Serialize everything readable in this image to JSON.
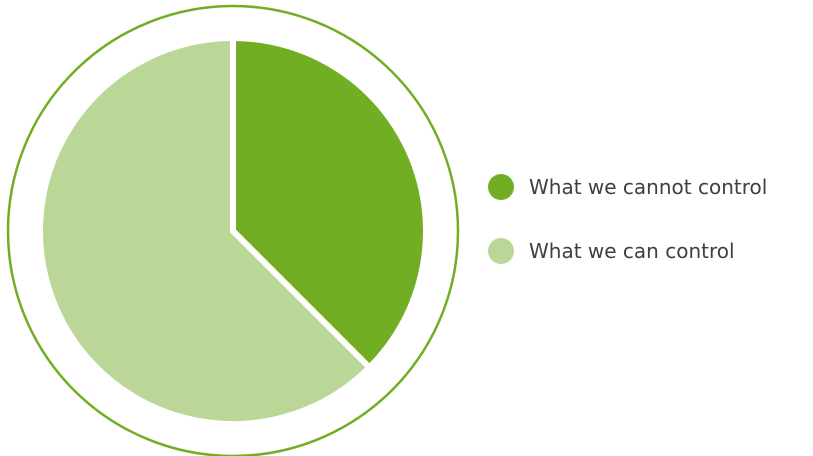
{
  "chart_data": {
    "type": "pie",
    "title": "",
    "slices": [
      {
        "label": "What we cannot control",
        "value": 37.5,
        "color": "#72ae24"
      },
      {
        "label": "What we can control",
        "value": 62.5,
        "color": "#bbd797"
      }
    ],
    "ring_color": "#72ae24",
    "legend_position": "right"
  },
  "legend": {
    "items": [
      {
        "label": "What we cannot control",
        "color": "#72ae24"
      },
      {
        "label": "What we can control",
        "color": "#bbd797"
      }
    ]
  }
}
